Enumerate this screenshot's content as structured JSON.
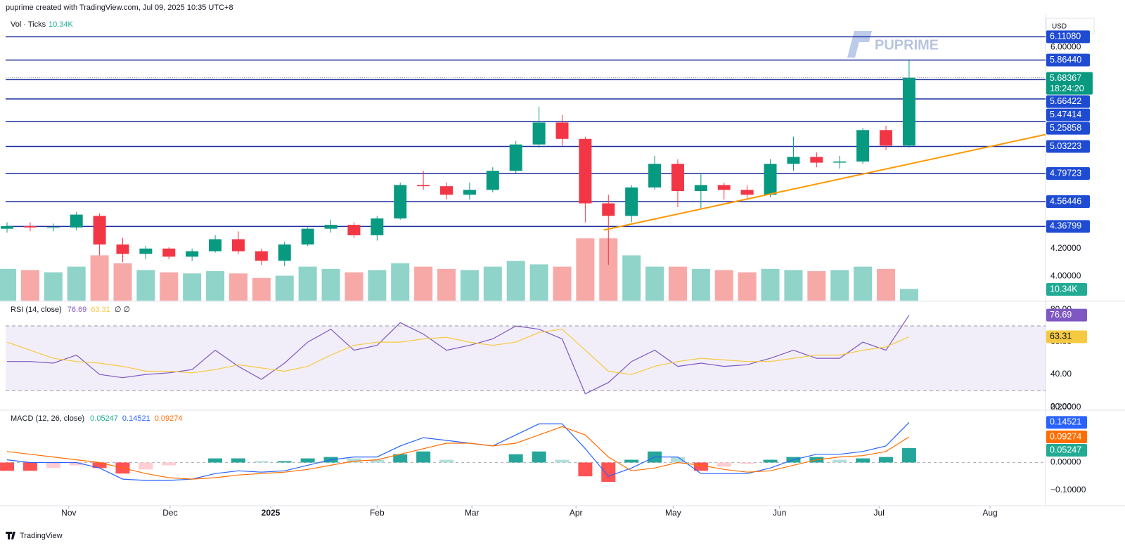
{
  "header": {
    "title": "puprime created with TradingView.com, Jul 09, 2025 10:35 UTC+8",
    "currency": "USD",
    "watermark": "PUPRIME",
    "countdown": "18:24:20",
    "footer": "TradingView"
  },
  "chart_data": [
    {
      "type": "candlestick",
      "log_scale": true,
      "ylim": [
        3.83,
        6.362
      ],
      "xlim": [
        0,
        44.9
      ],
      "yticks": [
        {
          "value": 6,
          "label": "6.00000"
        },
        {
          "value": 4.2,
          "label": "4.20000"
        },
        {
          "value": 4,
          "label": "4.00000"
        }
      ],
      "xticks": [
        {
          "value": 2.67,
          "label": "Nov"
        },
        {
          "value": 7.05,
          "label": "Dec"
        },
        {
          "value": 11.4,
          "label": "2025"
        },
        {
          "value": 16.0,
          "label": "Feb"
        },
        {
          "value": 20.1,
          "label": "Mar"
        },
        {
          "value": 24.6,
          "label": "Apr"
        },
        {
          "value": 28.8,
          "label": "May"
        },
        {
          "value": 33.4,
          "label": "Jun"
        },
        {
          "value": 37.7,
          "label": "Jul"
        },
        {
          "value": 42.5,
          "label": "Aug"
        }
      ],
      "levels": [
        {
          "value": 6.1108,
          "label": "6.11080"
        },
        {
          "value": 5.8644,
          "label": "5.86440"
        },
        {
          "value": 5.66422,
          "label": "5.66422"
        },
        {
          "value": 5.47414,
          "label": "5.47414"
        },
        {
          "value": 5.25858,
          "label": "5.25858"
        },
        {
          "value": 5.03223,
          "label": "5.03223"
        },
        {
          "value": 4.79723,
          "label": "4.79723"
        },
        {
          "value": 4.56446,
          "label": "4.56446"
        },
        {
          "value": 4.36799,
          "label": "4.36799"
        }
      ],
      "level_color": "#1c2f9e",
      "label_color": "#1e4bd2",
      "open": [
        4.35,
        4.37,
        4.36,
        4.36,
        4.45,
        4.23,
        4.16,
        4.2,
        4.14,
        4.18,
        4.27,
        4.18,
        4.11,
        4.23,
        4.35,
        4.38,
        4.3,
        4.43,
        4.7,
        4.69,
        4.62,
        4.66,
        4.82,
        5.05,
        5.25,
        5.1,
        4.55,
        4.45,
        4.68,
        4.88,
        4.65,
        4.7,
        4.66,
        4.62,
        4.88,
        4.94,
        4.89,
        4.9,
        5.18,
        5.04
      ],
      "high": [
        4.4,
        4.4,
        4.39,
        4.48,
        4.47,
        4.28,
        4.22,
        4.21,
        4.2,
        4.3,
        4.33,
        4.2,
        4.25,
        4.36,
        4.42,
        4.4,
        4.45,
        4.72,
        4.82,
        4.72,
        4.72,
        4.85,
        5.08,
        5.4,
        5.32,
        5.12,
        4.62,
        4.7,
        4.95,
        4.92,
        4.8,
        4.72,
        4.7,
        4.92,
        5.12,
        4.98,
        4.95,
        5.2,
        5.22,
        5.86
      ],
      "low": [
        4.32,
        4.33,
        4.33,
        4.34,
        4.15,
        4.1,
        4.12,
        4.12,
        4.11,
        4.17,
        4.16,
        4.08,
        4.07,
        4.22,
        4.32,
        4.28,
        4.26,
        4.42,
        4.66,
        4.58,
        4.58,
        4.64,
        4.8,
        5.02,
        5.04,
        4.4,
        4.08,
        4.4,
        4.66,
        4.52,
        4.5,
        4.58,
        4.58,
        4.6,
        4.82,
        4.85,
        4.84,
        4.88,
        5.0,
        5.02
      ],
      "close": [
        4.37,
        4.36,
        4.36,
        4.46,
        4.23,
        4.16,
        4.2,
        4.14,
        4.18,
        4.27,
        4.18,
        4.11,
        4.23,
        4.35,
        4.38,
        4.3,
        4.43,
        4.7,
        4.69,
        4.62,
        4.66,
        4.82,
        5.05,
        5.25,
        5.1,
        4.55,
        4.45,
        4.68,
        4.88,
        4.65,
        4.7,
        4.66,
        4.62,
        4.88,
        4.94,
        4.89,
        4.9,
        5.18,
        5.04,
        5.68367
      ],
      "up_color": "#089981",
      "down_color": "#f23645",
      "trendline": {
        "x": [
          25.8,
          44.9
        ],
        "values": [
          4.34,
          5.14
        ],
        "color": "#ff9800"
      }
    },
    {
      "type": "bar",
      "title": "Vol · Ticks",
      "ylim": [
        0,
        62
      ],
      "values": [
        28,
        27,
        25,
        30,
        40,
        33,
        27,
        25,
        24,
        26,
        24,
        20,
        22,
        30,
        28,
        25,
        27,
        33,
        30,
        28,
        27,
        30,
        35,
        32,
        30,
        55,
        55,
        40,
        30,
        30,
        28,
        27,
        25,
        28,
        27,
        26,
        27,
        30,
        28,
        10.34
      ],
      "value_labels": [
        null,
        null,
        null,
        null,
        null,
        null,
        null,
        null,
        null,
        null,
        null,
        null,
        null,
        null,
        null,
        null,
        null,
        null,
        null,
        null,
        null,
        null,
        null,
        null,
        null,
        null,
        null,
        null,
        null,
        null,
        null,
        null,
        null,
        null,
        null,
        null,
        null,
        null,
        null,
        "10.34K"
      ],
      "up_color": "#8fd3c9",
      "down_color": "#f7a9a7",
      "label_color": "#22ab94"
    },
    {
      "type": "line",
      "title": "RSI (14, close)",
      "extra": "∅ ∅",
      "ylim": [
        18.3,
        84.8
      ],
      "yticks": [
        {
          "value": 80,
          "label": "80.00"
        },
        {
          "value": 60,
          "label": "60.00"
        },
        {
          "value": 40,
          "label": "40.00"
        },
        {
          "value": 20,
          "label": "20.00"
        }
      ],
      "bands": [
        70,
        30
      ],
      "band_color": "#7e57c2",
      "series": [
        {
          "color": "#7e57c2",
          "values": [
            48,
            48,
            47,
            52,
            40,
            38,
            40,
            41,
            43,
            55,
            45,
            37,
            47,
            60,
            68,
            55,
            58,
            72,
            65,
            55,
            58,
            62,
            70,
            68,
            62,
            28,
            35,
            48,
            55,
            45,
            47,
            45,
            46,
            50,
            55,
            50,
            50,
            60,
            55,
            76.69
          ]
        },
        {
          "color": "#f5c940",
          "values": [
            60,
            55,
            50,
            48,
            47,
            45,
            42,
            42,
            41,
            43,
            46,
            44,
            42,
            45,
            52,
            58,
            60,
            60,
            62,
            63,
            60,
            58,
            60,
            66,
            68,
            55,
            42,
            40,
            45,
            48,
            50,
            49,
            48,
            48,
            50,
            52,
            52,
            55,
            57,
            63.31
          ]
        }
      ]
    },
    {
      "type": "line",
      "title": "MACD (12, 26, close)",
      "ylim": [
        -0.154,
        0.187
      ],
      "yticks": [
        {
          "value": 0.2,
          "label": "0.20000"
        },
        {
          "value": 0,
          "label": "0.00000"
        },
        {
          "value": -0.1,
          "label": "−0.10000"
        }
      ],
      "histogram": {
        "color": "#22ab94",
        "values": [
          -0.03,
          -0.03,
          -0.02,
          -0.01,
          -0.02,
          -0.04,
          -0.025,
          -0.01,
          0,
          0.015,
          0.015,
          0.005,
          0.005,
          0.015,
          0.02,
          0.015,
          0.01,
          0.03,
          0.04,
          0.01,
          0,
          0,
          0.03,
          0.04,
          0.01,
          -0.05,
          -0.07,
          0.01,
          0.04,
          0.02,
          -0.03,
          -0.015,
          -0.005,
          0.01,
          0.02,
          0.02,
          0.01,
          0.015,
          0.02,
          0.05247
        ]
      },
      "series": [
        {
          "color": "#2962ff",
          "values": [
            0.01,
            0,
            0,
            0,
            -0.02,
            -0.06,
            -0.065,
            -0.065,
            -0.06,
            -0.04,
            -0.03,
            -0.035,
            -0.03,
            -0.01,
            0.01,
            0.02,
            0.02,
            0.06,
            0.09,
            0.08,
            0.07,
            0.06,
            0.1,
            0.14,
            0.14,
            0.05,
            -0.05,
            -0.02,
            0.02,
            0.02,
            -0.04,
            -0.04,
            -0.04,
            -0.02,
            0.01,
            0.03,
            0.03,
            0.04,
            0.06,
            0.14521
          ]
        },
        {
          "color": "#ff6d00",
          "values": [
            0.04,
            0.03,
            0.02,
            0.01,
            0,
            -0.02,
            -0.04,
            -0.055,
            -0.06,
            -0.055,
            -0.045,
            -0.04,
            -0.035,
            -0.025,
            -0.01,
            0.005,
            0.01,
            0.03,
            0.05,
            0.07,
            0.07,
            0.06,
            0.07,
            0.1,
            0.13,
            0.1,
            0.02,
            -0.03,
            -0.02,
            0,
            -0.01,
            -0.025,
            -0.035,
            -0.03,
            -0.01,
            0.01,
            0.02,
            0.025,
            0.04,
            0.09274
          ]
        }
      ]
    }
  ]
}
